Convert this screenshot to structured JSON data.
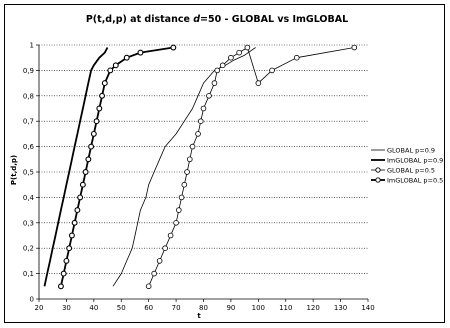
{
  "chart_data": {
    "type": "line",
    "title_parts": {
      "prefix": "P(t,d,p) at distance ",
      "italic": "d",
      "suffix": "=50 - GLOBAL vs ImGLOBAL"
    },
    "xlabel": "t",
    "ylabel": "P(t,d,p)",
    "xlim": [
      20,
      140
    ],
    "ylim": [
      0,
      1
    ],
    "x_ticks": [
      20,
      30,
      40,
      50,
      60,
      70,
      80,
      90,
      100,
      110,
      120,
      130,
      140
    ],
    "y_ticks": [
      "0",
      "0,1",
      "0,2",
      "0,3",
      "0,4",
      "0,5",
      "0,6",
      "0,7",
      "0,8",
      "0,9",
      "1"
    ],
    "y_tick_values": [
      0,
      0.1,
      0.2,
      0.3,
      0.4,
      0.5,
      0.6,
      0.7,
      0.8,
      0.9,
      1.0
    ],
    "grid": "horizontal dotted",
    "legend_position": "right",
    "series": [
      {
        "name": "GLOBAL p=0.9",
        "style": "thin",
        "markers": false,
        "x": [
          47,
          50,
          52,
          54,
          55,
          56,
          57,
          59,
          60,
          62,
          64,
          66,
          70,
          73,
          76,
          78,
          80,
          84,
          88,
          91,
          95,
          99
        ],
        "y": [
          0.05,
          0.1,
          0.15,
          0.2,
          0.25,
          0.3,
          0.35,
          0.4,
          0.45,
          0.5,
          0.55,
          0.6,
          0.65,
          0.7,
          0.75,
          0.8,
          0.85,
          0.9,
          0.92,
          0.94,
          0.96,
          0.99
        ]
      },
      {
        "name": "ImGLOBAL p=0.9",
        "style": "thick",
        "markers": false,
        "x": [
          22,
          23,
          24,
          25,
          26,
          27,
          28,
          29,
          30,
          31,
          32,
          33,
          34,
          35,
          36,
          37,
          38,
          39,
          40,
          42,
          44,
          45
        ],
        "y": [
          0.05,
          0.1,
          0.15,
          0.2,
          0.25,
          0.3,
          0.35,
          0.4,
          0.45,
          0.5,
          0.55,
          0.6,
          0.65,
          0.7,
          0.75,
          0.8,
          0.85,
          0.9,
          0.92,
          0.95,
          0.97,
          0.99
        ]
      },
      {
        "name": "GLOBAL p=0.5",
        "style": "thin",
        "markers": true,
        "x": [
          60,
          62,
          64,
          66,
          68,
          70,
          71,
          72,
          73,
          74,
          75,
          76,
          78,
          79,
          80,
          82,
          84,
          85,
          87,
          90,
          93,
          96,
          100,
          105,
          114,
          135
        ],
        "y": [
          0.05,
          0.1,
          0.15,
          0.2,
          0.25,
          0.3,
          0.35,
          0.4,
          0.45,
          0.5,
          0.55,
          0.6,
          0.65,
          0.7,
          0.75,
          0.8,
          0.85,
          0.9,
          0.92,
          0.95,
          0.97,
          0.99,
          0.85,
          0.9,
          0.95,
          0.99
        ]
      },
      {
        "name": "ImGLOBAL p=0.5",
        "style": "thick",
        "markers": true,
        "x": [
          28,
          29,
          30,
          31,
          32,
          33,
          34,
          35,
          36,
          37,
          38,
          39,
          40,
          41,
          42,
          43,
          44,
          46,
          48,
          52,
          57,
          69
        ],
        "y": [
          0.05,
          0.1,
          0.15,
          0.2,
          0.25,
          0.3,
          0.35,
          0.4,
          0.45,
          0.5,
          0.55,
          0.6,
          0.65,
          0.7,
          0.75,
          0.8,
          0.85,
          0.9,
          0.92,
          0.95,
          0.97,
          0.99
        ]
      }
    ]
  }
}
